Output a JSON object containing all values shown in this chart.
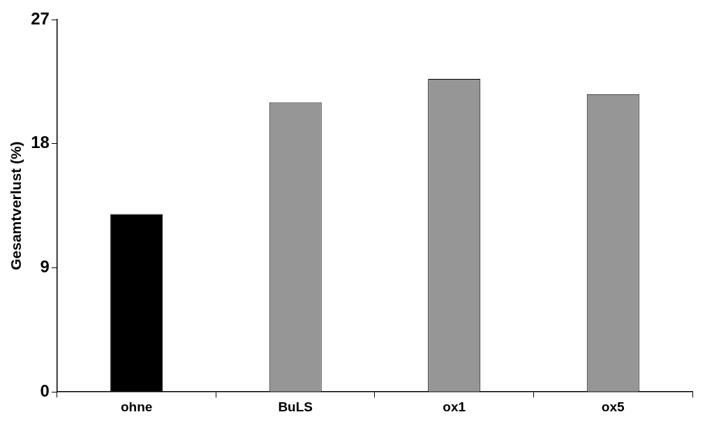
{
  "chart_data": {
    "type": "bar",
    "ylabel": "Gesamtverlust (%)",
    "categories": [
      "ohne",
      "BuLS",
      "ox1",
      "ox5"
    ],
    "values": [
      12.9,
      21.0,
      22.7,
      21.6
    ],
    "colors": [
      "#000000",
      "#969696",
      "#969696",
      "#969696"
    ],
    "ylim": [
      0,
      27
    ],
    "yticks": [
      0,
      9,
      18,
      27
    ],
    "grid": false,
    "legend": false
  }
}
